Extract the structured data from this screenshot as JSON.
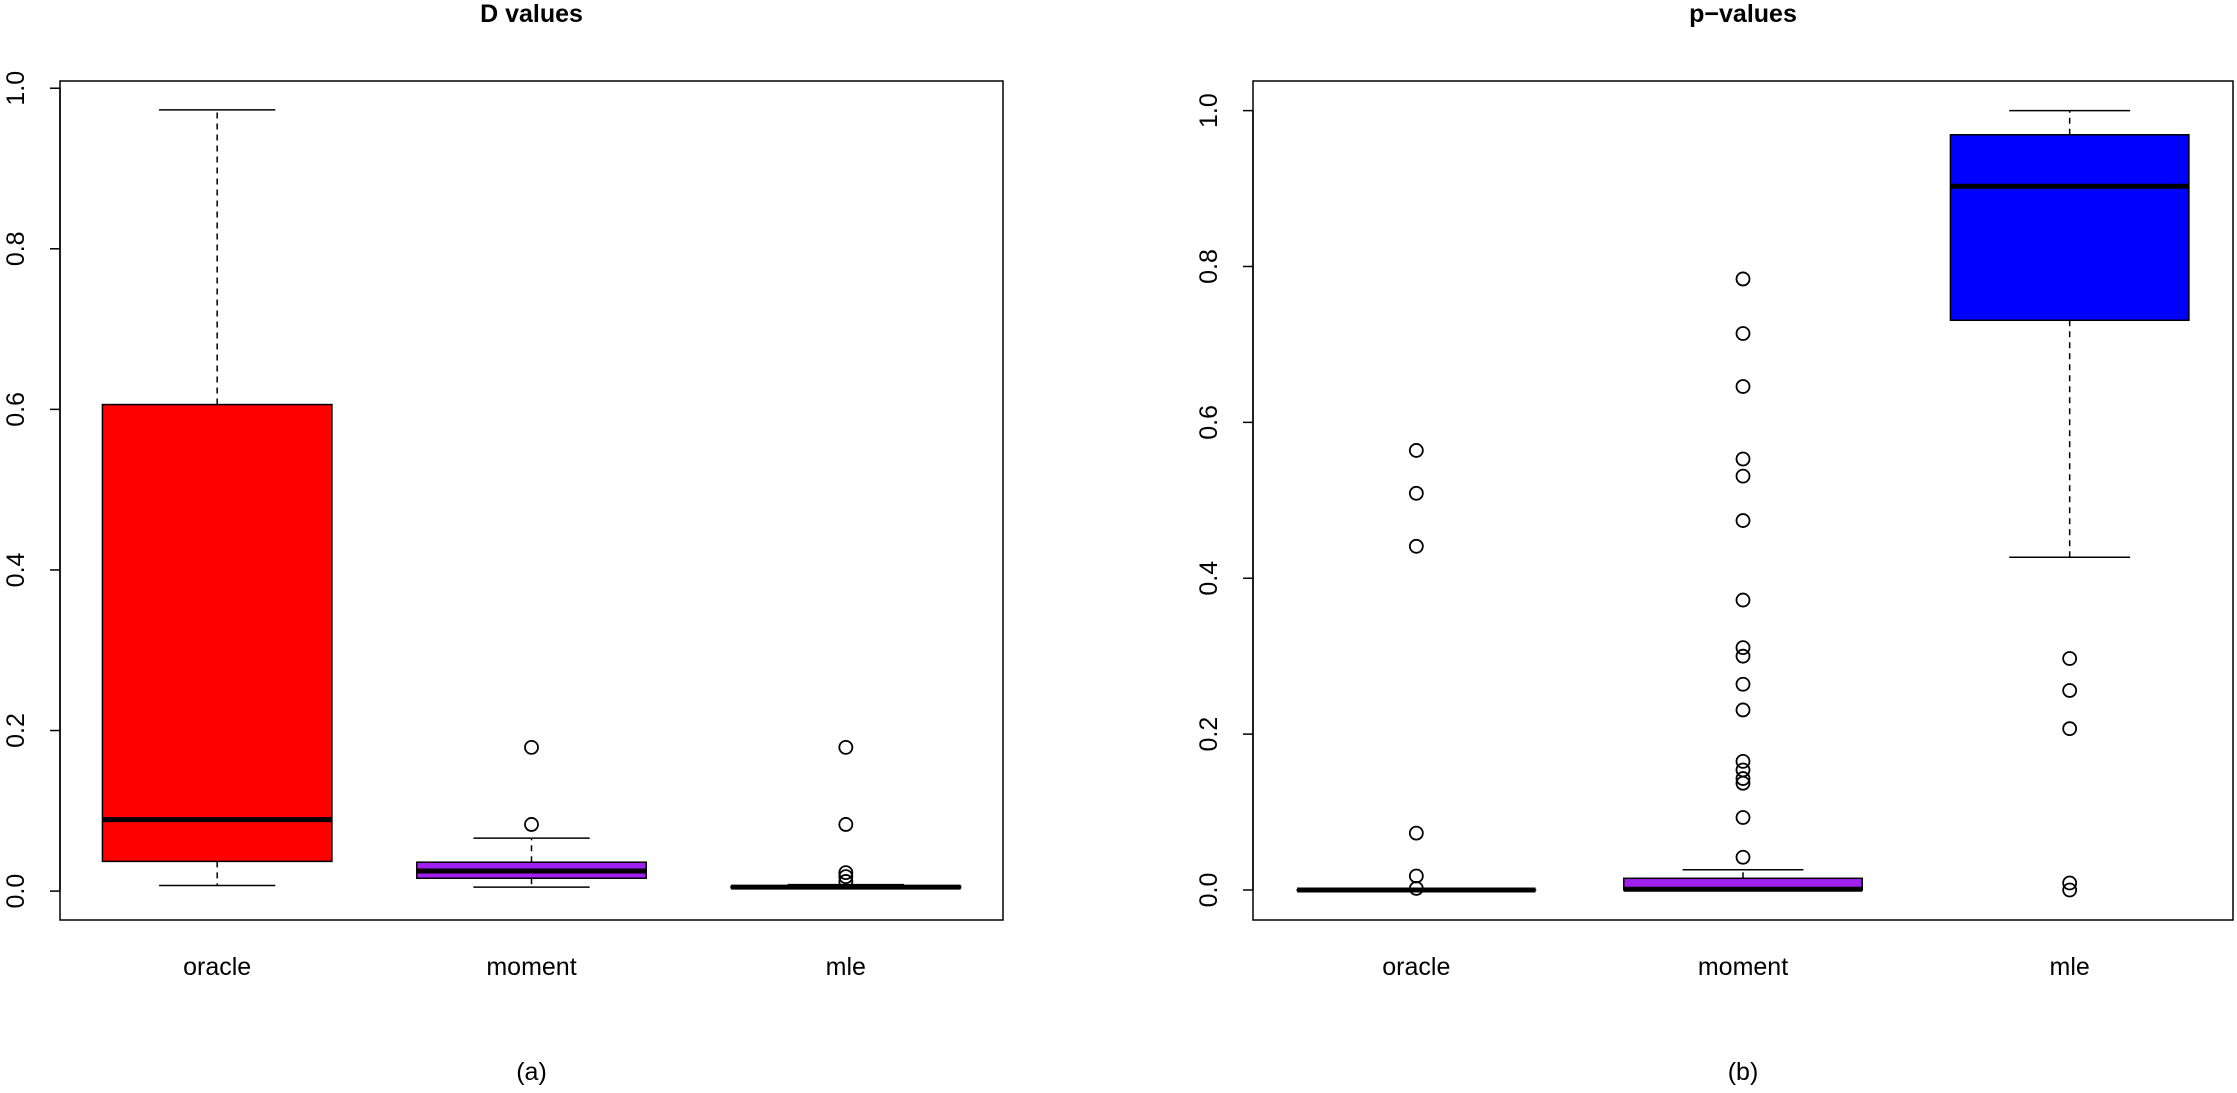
{
  "chart_data": [
    {
      "type": "box",
      "title": "D values",
      "caption": "(a)",
      "categories": [
        "oracle",
        "moment",
        "mle"
      ],
      "boxes": [
        {
          "color": "#ff0000",
          "whisker_low": 0.007,
          "q1": 0.037,
          "median": 0.089,
          "q3": 0.606,
          "whisker_high": 0.973,
          "outliers": []
        },
        {
          "color": "#a020f0",
          "whisker_low": 0.005,
          "q1": 0.016,
          "median": 0.025,
          "q3": 0.036,
          "whisker_high": 0.066,
          "outliers": [
            0.083,
            0.179
          ]
        },
        {
          "color": "#0000ff",
          "whisker_low": 0.003,
          "q1": 0.004,
          "median": 0.005,
          "q3": 0.006,
          "whisker_high": 0.008,
          "outliers": [
            0.179,
            0.083,
            0.023,
            0.018,
            0.012
          ]
        }
      ],
      "ylim": [
        -0.036,
        1.009
      ],
      "yticks": [
        {
          "value": 0,
          "label": "0.0"
        },
        {
          "value": 0.2,
          "label": "0.2"
        },
        {
          "value": 0.4,
          "label": "0.4"
        },
        {
          "value": 0.6,
          "label": "0.6"
        },
        {
          "value": 0.8,
          "label": "0.8"
        },
        {
          "value": 1,
          "label": "1.0"
        }
      ]
    },
    {
      "type": "box",
      "title": "p−values",
      "caption": "(b)",
      "categories": [
        "oracle",
        "moment",
        "mle"
      ],
      "boxes": [
        {
          "color": "#ff0000",
          "whisker_low": 0,
          "q1": 0,
          "median": 0,
          "q3": 0,
          "whisker_high": 0,
          "outliers": [
            0.564,
            0.509,
            0.441,
            0.073,
            0.018,
            0.002
          ]
        },
        {
          "color": "#a020f0",
          "whisker_low": 0,
          "q1": 0,
          "median": 0.001,
          "q3": 0.015,
          "whisker_high": 0.026,
          "outliers": [
            0.784,
            0.714,
            0.646,
            0.553,
            0.531,
            0.474,
            0.372,
            0.311,
            0.3,
            0.264,
            0.231,
            0.165,
            0.154,
            0.143,
            0.137,
            0.093,
            0.042
          ]
        },
        {
          "color": "#0000ff",
          "whisker_low": 0.427,
          "q1": 0.731,
          "median": 0.903,
          "q3": 0.969,
          "whisker_high": 1,
          "outliers": [
            0.297,
            0.256,
            0.207,
            0.009,
            0
          ]
        }
      ],
      "ylim": [
        -0.0385,
        1.038
      ],
      "yticks": [
        {
          "value": 0,
          "label": "0.0"
        },
        {
          "value": 0.2,
          "label": "0.2"
        },
        {
          "value": 0.4,
          "label": "0.4"
        },
        {
          "value": 0.6,
          "label": "0.6"
        },
        {
          "value": 0.8,
          "label": "0.8"
        },
        {
          "value": 1,
          "label": "1.0"
        }
      ]
    }
  ]
}
